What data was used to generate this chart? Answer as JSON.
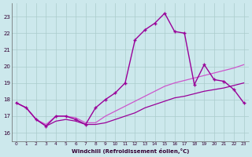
{
  "xlabel": "Windchill (Refroidissement éolien,°C)",
  "x_values": [
    0,
    1,
    2,
    3,
    4,
    5,
    6,
    7,
    8,
    9,
    10,
    11,
    12,
    13,
    14,
    15,
    16,
    17,
    18,
    19,
    20,
    21,
    22,
    23
  ],
  "y_line1": [
    17.8,
    17.5,
    16.8,
    16.4,
    16.7,
    16.8,
    16.7,
    16.5,
    16.5,
    16.6,
    16.8,
    17.0,
    17.2,
    17.5,
    17.7,
    17.9,
    18.1,
    18.2,
    18.35,
    18.5,
    18.6,
    18.7,
    18.85,
    19.0
  ],
  "y_line2": [
    17.8,
    17.5,
    16.8,
    16.5,
    17.0,
    17.0,
    16.9,
    16.6,
    16.6,
    17.0,
    17.3,
    17.6,
    17.9,
    18.2,
    18.5,
    18.8,
    19.0,
    19.15,
    19.3,
    19.45,
    19.6,
    19.75,
    19.9,
    20.1
  ],
  "y_line3": [
    17.8,
    17.5,
    16.8,
    16.4,
    17.0,
    17.0,
    16.8,
    16.5,
    17.5,
    18.0,
    18.4,
    19.0,
    21.6,
    22.2,
    22.6,
    23.2,
    22.1,
    22.0,
    18.9,
    20.1,
    19.2,
    19.1,
    18.6,
    17.8
  ],
  "ylim": [
    15.5,
    23.8
  ],
  "xlim": [
    -0.5,
    23.5
  ],
  "yticks": [
    16,
    17,
    18,
    19,
    20,
    21,
    22,
    23
  ],
  "xticks": [
    0,
    1,
    2,
    3,
    4,
    5,
    6,
    7,
    8,
    9,
    10,
    11,
    12,
    13,
    14,
    15,
    16,
    17,
    18,
    19,
    20,
    21,
    22,
    23
  ],
  "bg_color": "#cce8ec",
  "grid_color": "#aacccc",
  "color_main": "#990099",
  "color_light": "#cc55cc"
}
